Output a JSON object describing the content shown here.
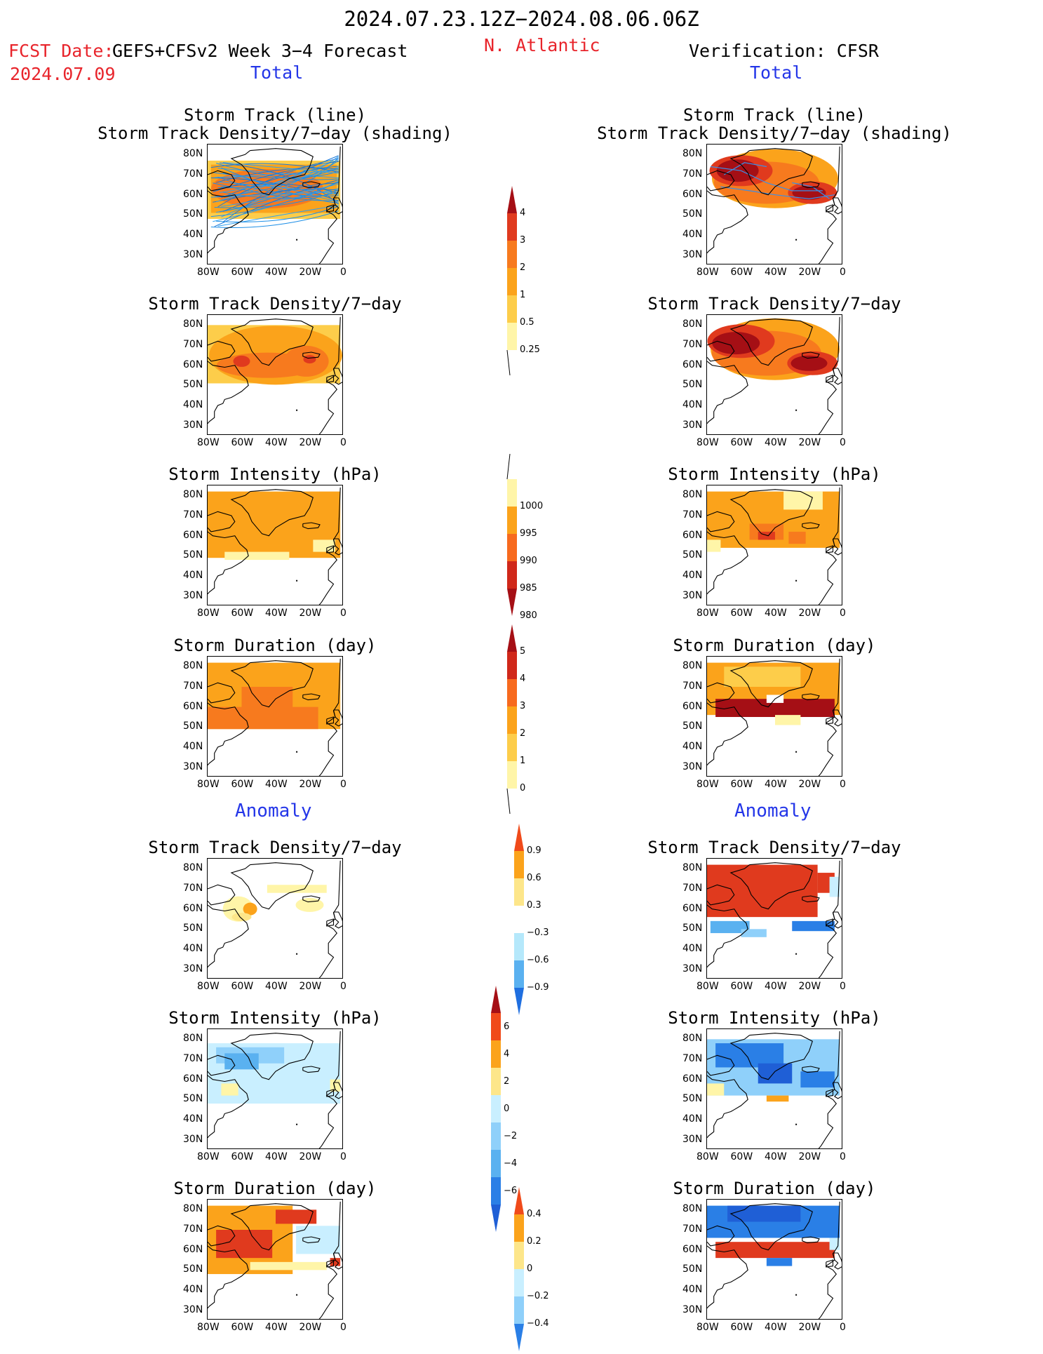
{
  "header": {
    "valid_period": "2024.07.23.12Z−2024.08.06.06Z",
    "fcst_label": "FCST Date:",
    "fcst_date": "2024.07.09",
    "model": "GEFS+CFSv2 Week 3−4 Forecast",
    "region": "N. Atlantic",
    "verification": "Verification: CFSR",
    "left_total": "Total",
    "right_total": "Total",
    "left_anomaly": "Anomaly",
    "right_anomaly": "Anomaly"
  },
  "axes": {
    "lat_ticks": [
      "80N",
      "70N",
      "60N",
      "50N",
      "40N",
      "30N"
    ],
    "lon_ticks": [
      "80W",
      "60W",
      "40W",
      "20W",
      "0"
    ]
  },
  "panels": [
    {
      "id": "fcst-track",
      "title": [
        "Storm Track (line)",
        "Storm Track Density/7−day (shading)"
      ],
      "col": "left",
      "row": 0,
      "field": "track_total_fcst"
    },
    {
      "id": "fcst-density",
      "title": [
        "Storm Track Density/7−day"
      ],
      "col": "left",
      "row": 1,
      "field": "density_total_fcst"
    },
    {
      "id": "fcst-intensity",
      "title": [
        "Storm Intensity (hPa)"
      ],
      "col": "left",
      "row": 2,
      "field": "intensity_total_fcst"
    },
    {
      "id": "fcst-duration",
      "title": [
        "Storm Duration (day)"
      ],
      "col": "left",
      "row": 3,
      "field": "duration_total_fcst"
    },
    {
      "id": "fcst-density-anom",
      "title": [
        "Storm Track Density/7−day"
      ],
      "col": "left",
      "row": 4,
      "field": "density_anom_fcst"
    },
    {
      "id": "fcst-intensity-anom",
      "title": [
        "Storm Intensity (hPa)"
      ],
      "col": "left",
      "row": 5,
      "field": "intensity_anom_fcst"
    },
    {
      "id": "fcst-duration-anom",
      "title": [
        "Storm Duration (day)"
      ],
      "col": "left",
      "row": 6,
      "field": "duration_anom_fcst"
    },
    {
      "id": "ver-track",
      "title": [
        "Storm Track (line)",
        "Storm Track Density/7−day (shading)"
      ],
      "col": "right",
      "row": 0,
      "field": "track_total_ver"
    },
    {
      "id": "ver-density",
      "title": [
        "Storm Track Density/7−day"
      ],
      "col": "right",
      "row": 1,
      "field": "density_total_ver"
    },
    {
      "id": "ver-intensity",
      "title": [
        "Storm Intensity (hPa)"
      ],
      "col": "right",
      "row": 2,
      "field": "intensity_total_ver"
    },
    {
      "id": "ver-duration",
      "title": [
        "Storm Duration (day)"
      ],
      "col": "right",
      "row": 3,
      "field": "duration_total_ver"
    },
    {
      "id": "ver-density-anom",
      "title": [
        "Storm Track Density/7−day"
      ],
      "col": "right",
      "row": 4,
      "field": "density_anom_ver"
    },
    {
      "id": "ver-intensity-anom",
      "title": [
        "Storm Intensity (hPa)"
      ],
      "col": "right",
      "row": 5,
      "field": "intensity_anom_ver"
    },
    {
      "id": "ver-duration-anom",
      "title": [
        "Storm Duration (day)"
      ],
      "col": "right",
      "row": 6,
      "field": "duration_anom_ver"
    }
  ],
  "colorbars": [
    {
      "id": "cbar-density",
      "labels": [
        "4",
        "3",
        "2",
        "1",
        "0.5",
        "0.25"
      ],
      "colors": [
        "#a50f15",
        "#e03a1e",
        "#f77a1e",
        "#fba31b",
        "#fdcd4a",
        "#fff5a8"
      ],
      "tail": "down-line"
    },
    {
      "id": "cbar-intensity",
      "labels": [
        "1000",
        "995",
        "990",
        "985",
        "980"
      ],
      "colors": [
        "#fff5a8",
        "#fba31b",
        "#f76a1e",
        "#d0281a",
        "#a50f15"
      ],
      "tail": "up-line"
    },
    {
      "id": "cbar-duration",
      "labels": [
        "5",
        "4",
        "3",
        "2",
        "1",
        "0"
      ],
      "colors": [
        "#a50f15",
        "#d0281a",
        "#f76a1e",
        "#fba31b",
        "#fdcd4a",
        "#fff5a8"
      ],
      "tail": "down-line"
    },
    {
      "id": "cbar-density-anom",
      "labels": [
        "0.9",
        "0.6",
        "0.3",
        "−0.3",
        "−0.6",
        "−0.9"
      ],
      "colors": [
        "#f04a1a",
        "#fba31b",
        "#fde68a",
        "#ffffff",
        "#b5e8fb",
        "#5ab1f0",
        "#1f6fe0"
      ]
    },
    {
      "id": "cbar-intensity-anom",
      "labels": [
        "6",
        "4",
        "2",
        "0",
        "−2",
        "−4",
        "−6"
      ],
      "colors": [
        "#a50f15",
        "#f04a1a",
        "#fba31b",
        "#fde68a",
        "#c9efff",
        "#8fd0fa",
        "#5ab1f0",
        "#2a7fe6",
        "#1f5fd6"
      ]
    },
    {
      "id": "cbar-duration-anom",
      "labels": [
        "0.4",
        "0.2",
        "0",
        "−0.2",
        "−0.4"
      ],
      "colors": [
        "#f04a1a",
        "#fba31b",
        "#fde68a",
        "#c9efff",
        "#8fd0fa",
        "#2a7fe6"
      ]
    }
  ]
}
